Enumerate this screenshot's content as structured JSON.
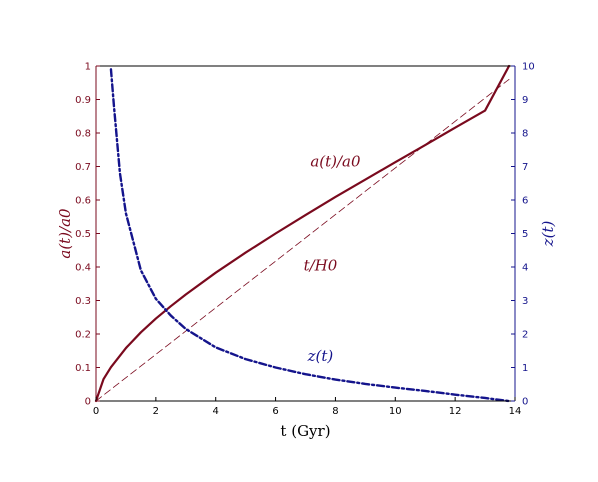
{
  "chart_data": {
    "type": "line",
    "title": "",
    "xlabel": "t (Gyr)",
    "ylabel_left": "a(t)/a0",
    "ylabel_right": "z(t)",
    "xlim": [
      0,
      14
    ],
    "ylim_left": [
      0,
      1
    ],
    "ylim_right": [
      0,
      10
    ],
    "x_ticks": [
      "0",
      "2",
      "4",
      "6",
      "8",
      "10",
      "12",
      "14"
    ],
    "y_left_ticks": [
      "0",
      "0.1",
      "0.2",
      "0.3",
      "0.4",
      "0.5",
      "0.6",
      "0.7",
      "0.8",
      "0.9",
      "1"
    ],
    "y_right_ticks": [
      "0",
      "1",
      "2",
      "3",
      "4",
      "5",
      "6",
      "7",
      "8",
      "9",
      "10"
    ],
    "grid": false,
    "colors": {
      "scale_factor": "#7a0a1e",
      "redshift": "#14148c",
      "left_axis": "#7a0a1e",
      "right_axis": "#14148c"
    },
    "series": [
      {
        "name": "a(t)/a0",
        "axis": "left",
        "style": "solid",
        "x": [
          0,
          0.25,
          0.5,
          1,
          1.5,
          2,
          2.5,
          3,
          4,
          5,
          6,
          7,
          8,
          9,
          10,
          11,
          12,
          13,
          13.8
        ],
        "y": [
          0,
          0.065,
          0.101,
          0.158,
          0.205,
          0.246,
          0.283,
          0.318,
          0.383,
          0.443,
          0.5,
          0.555,
          0.609,
          0.661,
          0.713,
          0.764,
          0.816,
          0.867,
          1.0
        ]
      },
      {
        "name": "t/H0",
        "axis": "left",
        "style": "thin-dashed",
        "x": [
          0,
          13.8
        ],
        "y": [
          0,
          0.96
        ]
      },
      {
        "name": "z(t)",
        "axis": "right",
        "style": "dash-dot",
        "x": [
          0.5,
          0.6,
          0.8,
          1,
          1.5,
          2,
          2.5,
          3,
          4,
          5,
          6,
          7,
          8,
          9,
          10,
          11,
          12,
          13,
          13.8
        ],
        "y": [
          9.9,
          8.8,
          6.8,
          5.6,
          3.9,
          3.05,
          2.55,
          2.15,
          1.6,
          1.25,
          1.0,
          0.8,
          0.64,
          0.51,
          0.4,
          0.3,
          0.19,
          0.09,
          0.0
        ]
      }
    ],
    "annotations": [
      {
        "text": "a(t)/a0",
        "x": 8,
        "y": 0.7,
        "axis": "left"
      },
      {
        "text": "t/H0",
        "x": 7.5,
        "y": 0.39,
        "axis": "left"
      },
      {
        "text": "z(t)",
        "x": 7.5,
        "y": 1.2,
        "axis": "right"
      }
    ]
  }
}
